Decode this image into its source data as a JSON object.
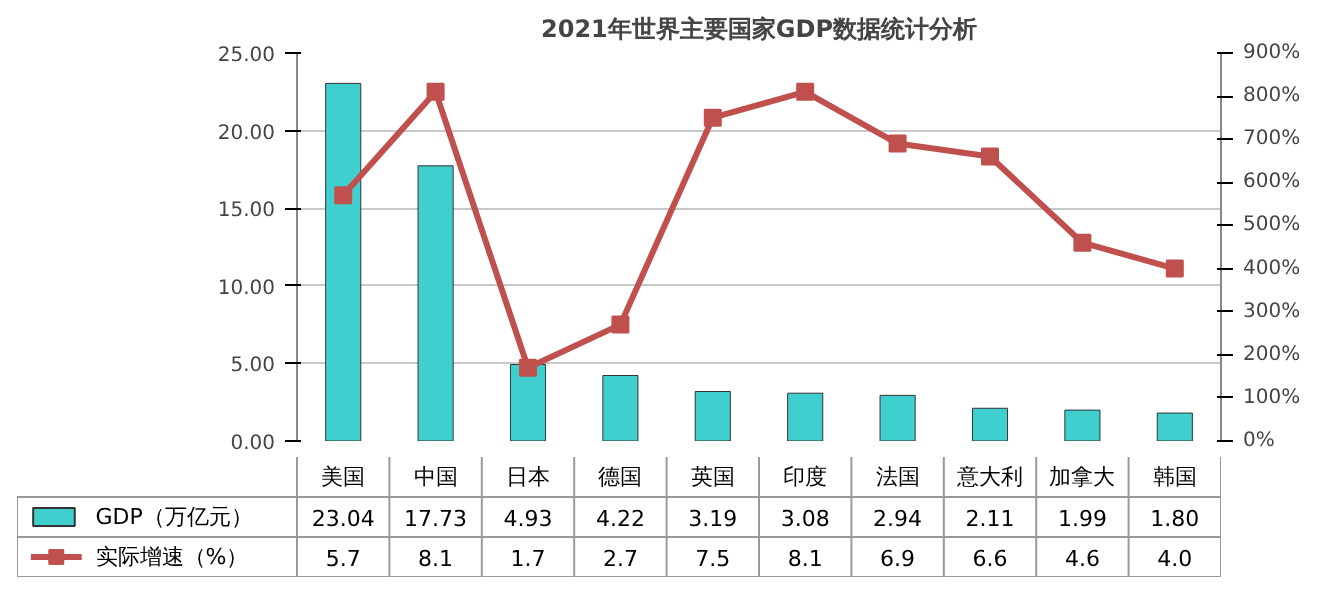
{
  "chart_data": {
    "type": "bar",
    "title": "2021年世界主要国家GDP数据统计分析",
    "categories": [
      "美国",
      "中国",
      "日本",
      "德国",
      "英国",
      "印度",
      "法国",
      "意大利",
      "加拿大",
      "韩国"
    ],
    "series": [
      {
        "name": "GDP（万亿元）",
        "color": "#40cfcf",
        "values": [
          23.04,
          17.73,
          4.93,
          4.22,
          3.19,
          3.08,
          2.94,
          2.11,
          1.99,
          1.8
        ],
        "value_labels": [
          "23.04",
          "17.73",
          "4.93",
          "4.22",
          "3.19",
          "3.08",
          "2.94",
          "2.11",
          "1.99",
          "1.80"
        ]
      },
      {
        "name": "实际增速（%）",
        "type": "line",
        "axis": "y2",
        "color": "#c0504d",
        "marker": "square",
        "line_style": "solid",
        "values": [
          5.7,
          8.1,
          1.7,
          2.7,
          7.5,
          8.1,
          6.9,
          6.6,
          4.6,
          4.0
        ],
        "value_labels": [
          "5.7",
          "8.1",
          "1.7",
          "2.7",
          "7.5",
          "8.1",
          "6.9",
          "6.6",
          "4.6",
          "4.0"
        ]
      }
    ],
    "ylim": [
      0,
      25
    ],
    "yticks": [
      {
        "value": 0,
        "label": "0.00"
      },
      {
        "value": 5,
        "label": "5.00"
      },
      {
        "value": 10,
        "label": "10.00"
      },
      {
        "value": 15,
        "label": "15.00"
      },
      {
        "value": 20,
        "label": "20.00"
      },
      {
        "value": 25,
        "label": "25.00"
      }
    ],
    "y2lim": [
      0,
      9
    ],
    "y2ticks": [
      {
        "value": 0,
        "label": "0%"
      },
      {
        "value": 1,
        "label": "100%"
      },
      {
        "value": 2,
        "label": "200%"
      },
      {
        "value": 3,
        "label": "300%"
      },
      {
        "value": 4,
        "label": "400%"
      },
      {
        "value": 5,
        "label": "500%"
      },
      {
        "value": 6,
        "label": "600%"
      },
      {
        "value": 7,
        "label": "700%"
      },
      {
        "value": 8,
        "label": "800%"
      },
      {
        "value": 9,
        "label": "900%"
      }
    ],
    "grid": "y",
    "legend": "bottom"
  }
}
